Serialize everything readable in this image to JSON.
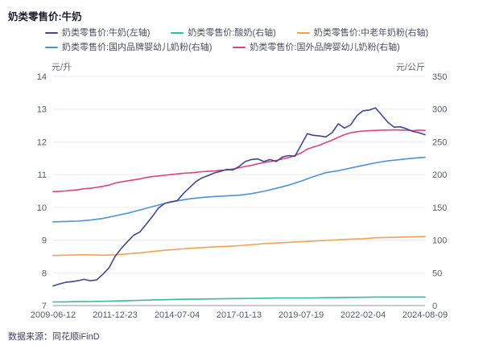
{
  "header": {
    "title": "奶类零售价:牛奶"
  },
  "footer": {
    "source": "数据来源：同花顺iFinD"
  },
  "colors": {
    "milk_navy": "#3c4895",
    "yogurt_teal": "#2fbea2",
    "elder_powder_orange": "#f8a04e",
    "domestic_infant_blue": "#4a93db",
    "foreign_infant_pink": "#e2417e",
    "grid_line": "#eaeaf2",
    "axis_line": "#a6a9b8",
    "tick_text": "#565b6b",
    "title_text": "#1a1c2e",
    "legend_text": "#4a4d5e",
    "source_text": "#3d4263"
  },
  "legend": {
    "row_break": 3,
    "items": [
      {
        "label": "奶类零售价:牛奶(左轴)",
        "color": "#3c4895"
      },
      {
        "label": "奶类零售价:酸奶(右轴)",
        "color": "#2fbea2"
      },
      {
        "label": "奶类零售价:中老年奶粉(右轴)",
        "color": "#f8a04e"
      },
      {
        "label": "奶类零售价:国内品牌婴幼儿奶粉(右轴)",
        "color": "#4a93db"
      },
      {
        "label": "奶类零售价:国外品牌婴幼儿奶粉(右轴)",
        "color": "#e2417e"
      }
    ]
  },
  "chart_data": {
    "type": "line",
    "title": "奶类零售价:牛奶",
    "grid": true,
    "legend_position": "top",
    "left_axis": {
      "unit": "元/升",
      "min": 7,
      "max": 14,
      "ticks": [
        14,
        13,
        12,
        11,
        10,
        9,
        8,
        7
      ]
    },
    "right_axis": {
      "unit": "元/公斤",
      "min": 0,
      "max": 350,
      "ticks": [
        350,
        300,
        250,
        200,
        150,
        100,
        50,
        0
      ]
    },
    "x_tick_labels": [
      "2009-06-12",
      "2011-12-23",
      "2014-07-04",
      "2017-01-13",
      "2019-07-19",
      "2022-02-04",
      "2024-08-09"
    ],
    "series": [
      {
        "name": "奶类零售价:牛奶(左轴)",
        "axis": "left",
        "color": "#3c4895",
        "values": [
          7.6,
          7.66,
          7.71,
          7.73,
          7.76,
          7.8,
          7.76,
          7.78,
          7.95,
          8.15,
          8.5,
          8.75,
          8.95,
          9.15,
          9.25,
          9.48,
          9.72,
          9.98,
          10.12,
          10.17,
          10.2,
          10.42,
          10.6,
          10.78,
          10.9,
          10.97,
          11.05,
          11.1,
          11.16,
          11.14,
          11.25,
          11.4,
          11.46,
          11.48,
          11.4,
          11.46,
          11.4,
          11.54,
          11.58,
          11.56,
          11.9,
          12.25,
          12.2,
          12.18,
          12.15,
          12.28,
          12.55,
          12.42,
          12.52,
          12.8,
          12.95,
          12.97,
          13.04,
          12.82,
          12.6,
          12.45,
          12.46,
          12.4,
          12.32,
          12.28,
          12.22
        ]
      },
      {
        "name": "奶类零售价:酸奶(右轴)",
        "axis": "right",
        "color": "#2fbea2",
        "values": [
          5.5,
          5.7,
          6,
          6.2,
          6.5,
          7,
          7.5,
          8,
          8.5,
          9,
          9.5,
          9.7,
          10,
          10.2,
          10.5,
          10.7,
          11,
          11.2,
          11.5,
          11.5,
          11.5,
          11.7,
          12,
          12.2,
          12.5,
          12.7,
          13,
          13,
          13,
          13,
          13
        ]
      },
      {
        "name": "奶类零售价:中老年奶粉(右轴)",
        "axis": "right",
        "color": "#f8a04e",
        "values": [
          76.5,
          77,
          77.5,
          77.5,
          77,
          77.5,
          79,
          80.5,
          82.5,
          84.5,
          86,
          87.5,
          88.5,
          89.5,
          90.5,
          91.5,
          93,
          94.5,
          95.5,
          96.5,
          97.5,
          98.5,
          99.5,
          100.5,
          101.5,
          102,
          103.5,
          104,
          104.5,
          105,
          105.5
        ]
      },
      {
        "name": "奶类零售价:国内品牌婴幼儿奶粉(右轴)",
        "axis": "right",
        "color": "#4a93db",
        "values": [
          128,
          128.5,
          129,
          130.5,
          133,
          137,
          141,
          146,
          151,
          156,
          160,
          163,
          165,
          166.5,
          167.5,
          168.5,
          171,
          174.5,
          179,
          184,
          190,
          197,
          203,
          206,
          210,
          214,
          218,
          221,
          223,
          225,
          226.5
        ]
      },
      {
        "name": "奶类零售价:国外品牌婴幼儿奶粉(右轴)",
        "axis": "right",
        "color": "#e2417e",
        "values": [
          174,
          174.5,
          175,
          176,
          177,
          178.5,
          179,
          180.5,
          182,
          184,
          187,
          189,
          190.5,
          192,
          193.5,
          195.5,
          197,
          198,
          199,
          200,
          201,
          202,
          202.5,
          203.5,
          204.5,
          205,
          205.5,
          206.5,
          207,
          208.5,
          210.5,
          212.5,
          214,
          216.5,
          218.5,
          220,
          221.5,
          224,
          226,
          229,
          233,
          239,
          242,
          245,
          249,
          252.5,
          257,
          261,
          264,
          265.5,
          266.5,
          267,
          267.5,
          268,
          268,
          268.5,
          268,
          268,
          267,
          268,
          267.5
        ]
      }
    ]
  }
}
